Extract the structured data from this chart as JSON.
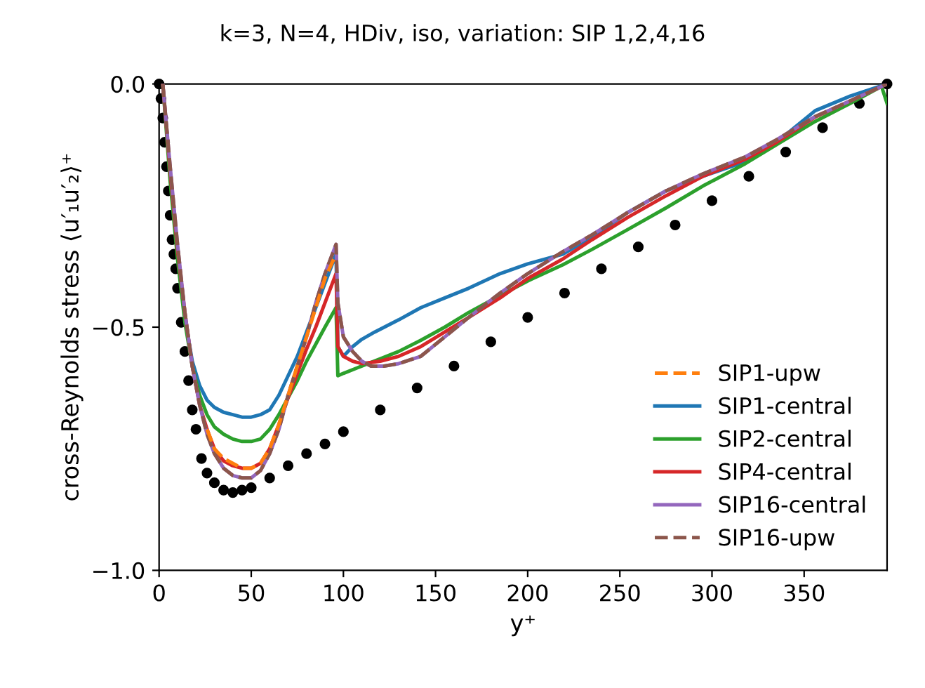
{
  "chart_data": {
    "type": "line",
    "title": "k=3, N=4, HDiv, iso, variation: SIP 1,2,4,16",
    "xlabel": "y⁺",
    "ylabel": "cross-Reynolds stress ⟨u′₁u′₂⟩⁺",
    "xlim": [
      0,
      395
    ],
    "ylim": [
      -1.0,
      0.0
    ],
    "xticks": [
      0,
      50,
      100,
      150,
      200,
      250,
      300,
      350
    ],
    "yticks": [
      {
        "value": -1.0,
        "label": "−1.0"
      },
      {
        "value": -0.5,
        "label": "−0.5"
      },
      {
        "value": 0.0,
        "label": "0.0"
      }
    ],
    "grid": false,
    "legend": "lower right",
    "series": [
      {
        "type": "scatter",
        "color": "#000000",
        "marker": "circle",
        "x": [
          0,
          1,
          2,
          3,
          4,
          5,
          6,
          7,
          8,
          9,
          10,
          12,
          14,
          16,
          18,
          20,
          23,
          26,
          30,
          35,
          40,
          45,
          50,
          60,
          70,
          80,
          90,
          100,
          120,
          140,
          160,
          180,
          200,
          220,
          240,
          260,
          280,
          300,
          320,
          340,
          360,
          380,
          395
        ],
        "values": [
          0,
          -0.03,
          -0.07,
          -0.12,
          -0.17,
          -0.22,
          -0.27,
          -0.32,
          -0.35,
          -0.38,
          -0.42,
          -0.49,
          -0.55,
          -0.61,
          -0.67,
          -0.71,
          -0.77,
          -0.8,
          -0.82,
          -0.835,
          -0.84,
          -0.835,
          -0.83,
          -0.81,
          -0.785,
          -0.76,
          -0.74,
          -0.715,
          -0.67,
          -0.625,
          -0.58,
          -0.53,
          -0.48,
          -0.43,
          -0.38,
          -0.335,
          -0.29,
          -0.24,
          -0.19,
          -0.14,
          -0.09,
          -0.04,
          0
        ]
      },
      {
        "name": "SIP1-upw",
        "color": "#ff7f0e",
        "line_style": "dashed",
        "x": [
          26,
          30,
          35,
          40,
          45,
          50,
          55,
          60,
          65,
          70,
          75,
          80,
          85,
          90,
          96
        ],
        "values": [
          -0.71,
          -0.75,
          -0.77,
          -0.78,
          -0.79,
          -0.79,
          -0.78,
          -0.75,
          -0.7,
          -0.64,
          -0.58,
          -0.52,
          -0.46,
          -0.4,
          -0.35
        ]
      },
      {
        "name": "SIP1-central",
        "color": "#1f77b4",
        "line_style": "solid",
        "x": [
          14,
          18,
          22,
          26,
          30,
          35,
          40,
          45,
          50,
          55,
          60,
          65,
          70,
          75,
          80,
          85,
          90,
          96,
          97,
          100,
          105,
          110,
          117,
          130,
          142,
          155,
          168,
          185,
          200,
          219,
          235,
          254,
          275,
          295,
          318,
          335,
          356,
          375,
          395
        ],
        "values": [
          -0.48,
          -0.57,
          -0.62,
          -0.65,
          -0.665,
          -0.675,
          -0.68,
          -0.685,
          -0.685,
          -0.68,
          -0.67,
          -0.64,
          -0.6,
          -0.56,
          -0.51,
          -0.46,
          -0.41,
          -0.35,
          -0.54,
          -0.56,
          -0.54,
          -0.525,
          -0.51,
          -0.485,
          -0.46,
          -0.44,
          -0.42,
          -0.39,
          -0.37,
          -0.35,
          -0.315,
          -0.265,
          -0.22,
          -0.19,
          -0.16,
          -0.12,
          -0.055,
          -0.025,
          0
        ]
      },
      {
        "name": "SIP2-central",
        "color": "#2ca02c",
        "line_style": "solid",
        "x": [
          2,
          6,
          10,
          14,
          18,
          22,
          26,
          30,
          35,
          40,
          45,
          50,
          55,
          60,
          65,
          70,
          75,
          80,
          85,
          90,
          96,
          97,
          100,
          110,
          120,
          130,
          142,
          155,
          168,
          185,
          200,
          219,
          235,
          254,
          275,
          295,
          318,
          335,
          356,
          375,
          392,
          395
        ],
        "values": [
          0,
          -0.2,
          -0.36,
          -0.49,
          -0.58,
          -0.64,
          -0.68,
          -0.705,
          -0.72,
          -0.73,
          -0.735,
          -0.735,
          -0.73,
          -0.71,
          -0.68,
          -0.645,
          -0.61,
          -0.57,
          -0.535,
          -0.5,
          -0.46,
          -0.6,
          -0.595,
          -0.58,
          -0.565,
          -0.55,
          -0.527,
          -0.5,
          -0.47,
          -0.435,
          -0.405,
          -0.372,
          -0.34,
          -0.3,
          -0.255,
          -0.21,
          -0.164,
          -0.125,
          -0.077,
          -0.04,
          -0.005,
          -0.04
        ]
      },
      {
        "name": "SIP4-central",
        "color": "#d62728",
        "line_style": "solid",
        "x": [
          2,
          6,
          10,
          14,
          18,
          22,
          26,
          30,
          35,
          40,
          45,
          50,
          55,
          60,
          65,
          70,
          75,
          80,
          85,
          90,
          96,
          97,
          100,
          105,
          110,
          120,
          130,
          142,
          155,
          168,
          185,
          200,
          219,
          235,
          254,
          275,
          295,
          318,
          335,
          356,
          375,
          395
        ],
        "values": [
          0,
          -0.18,
          -0.34,
          -0.47,
          -0.58,
          -0.66,
          -0.71,
          -0.75,
          -0.775,
          -0.785,
          -0.79,
          -0.79,
          -0.78,
          -0.75,
          -0.7,
          -0.645,
          -0.595,
          -0.545,
          -0.5,
          -0.45,
          -0.39,
          -0.54,
          -0.56,
          -0.57,
          -0.575,
          -0.57,
          -0.56,
          -0.54,
          -0.51,
          -0.48,
          -0.44,
          -0.4,
          -0.36,
          -0.32,
          -0.275,
          -0.23,
          -0.19,
          -0.155,
          -0.12,
          -0.068,
          -0.035,
          0
        ]
      },
      {
        "name": "SIP16-central",
        "color": "#9467bd",
        "line_style": "solid",
        "x": [
          2,
          6,
          10,
          14,
          18,
          22,
          26,
          30,
          35,
          40,
          45,
          50,
          55,
          60,
          65,
          70,
          75,
          80,
          85,
          90,
          96,
          97,
          100,
          105,
          110,
          115,
          122,
          130,
          142,
          155,
          168,
          185,
          200,
          219,
          235,
          254,
          275,
          295,
          318,
          335,
          356,
          375,
          395
        ],
        "values": [
          0,
          -0.17,
          -0.33,
          -0.47,
          -0.58,
          -0.66,
          -0.72,
          -0.76,
          -0.79,
          -0.805,
          -0.81,
          -0.81,
          -0.795,
          -0.76,
          -0.71,
          -0.64,
          -0.58,
          -0.52,
          -0.45,
          -0.39,
          -0.33,
          -0.45,
          -0.52,
          -0.55,
          -0.57,
          -0.58,
          -0.58,
          -0.575,
          -0.56,
          -0.52,
          -0.48,
          -0.43,
          -0.39,
          -0.345,
          -0.31,
          -0.265,
          -0.22,
          -0.185,
          -0.15,
          -0.115,
          -0.067,
          -0.035,
          0
        ]
      },
      {
        "name": "SIP16-upw",
        "color": "#8c564b",
        "line_style": "dashed",
        "x": [
          2,
          6,
          10,
          14,
          18,
          22,
          26,
          30,
          35,
          40,
          45,
          50,
          55,
          60,
          65,
          70,
          75,
          80,
          85,
          90,
          96,
          97,
          100,
          105,
          110,
          115,
          122,
          130,
          142,
          155,
          168,
          185,
          200,
          219,
          235,
          254,
          275,
          295,
          318,
          335,
          356,
          375,
          395
        ],
        "values": [
          0,
          -0.17,
          -0.33,
          -0.47,
          -0.58,
          -0.66,
          -0.72,
          -0.76,
          -0.79,
          -0.805,
          -0.81,
          -0.81,
          -0.795,
          -0.76,
          -0.71,
          -0.64,
          -0.58,
          -0.52,
          -0.45,
          -0.39,
          -0.33,
          -0.45,
          -0.52,
          -0.55,
          -0.57,
          -0.58,
          -0.58,
          -0.575,
          -0.56,
          -0.52,
          -0.48,
          -0.43,
          -0.39,
          -0.345,
          -0.31,
          -0.265,
          -0.22,
          -0.185,
          -0.15,
          -0.115,
          -0.067,
          -0.035,
          0
        ]
      }
    ]
  }
}
